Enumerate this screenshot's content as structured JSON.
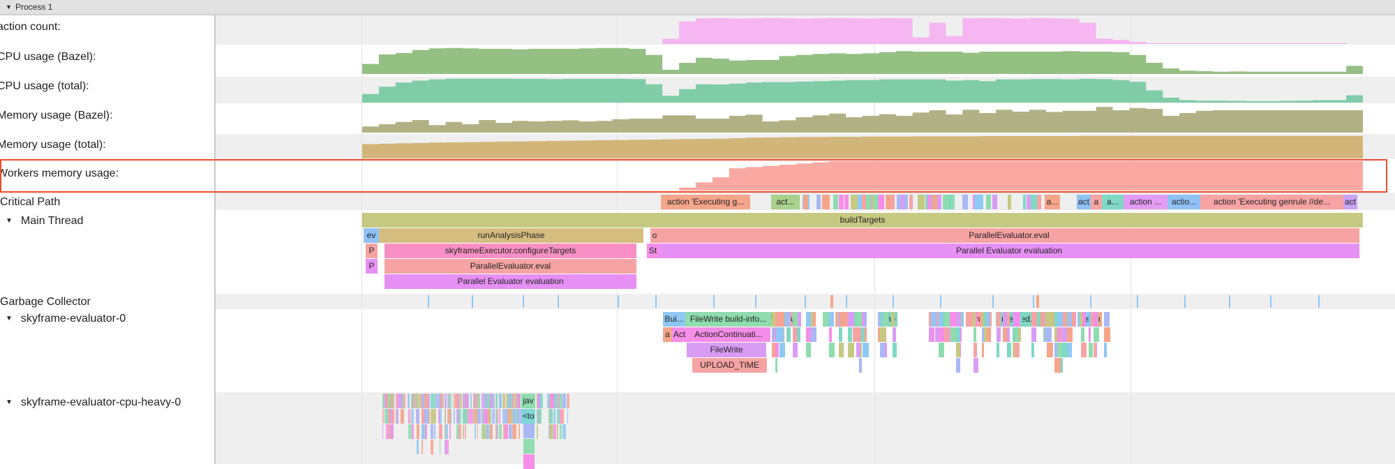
{
  "header": {
    "title": "Process 1",
    "expand_icon": "triangle-down"
  },
  "highlight_color": "#ee4b2b",
  "counters": [
    {
      "key": "action_count",
      "label": "action count:",
      "color": "#f5b6f2",
      "levels": [
        0,
        0,
        0,
        0,
        0,
        0,
        0,
        0,
        0,
        0,
        0,
        0,
        0,
        0,
        0,
        0,
        0,
        0,
        0.2,
        0.85,
        0.97,
        0.98,
        0.96,
        0.97,
        0.98,
        0.97,
        0.96,
        0.97,
        0.98,
        0.97,
        0.96,
        0.98,
        0.97,
        0.25,
        0.8,
        0.3,
        0.97,
        0.98,
        0.97,
        0.96,
        0.98,
        0.97,
        0.95,
        0.8,
        0.2,
        0.15,
        0.08,
        0.03,
        0.03,
        0.03,
        0.03,
        0.03,
        0.03,
        0.03,
        0.03,
        0.03,
        0.03,
        0.03,
        0.03,
        0
      ]
    },
    {
      "key": "cpu_bazel",
      "label": "CPU usage (Bazel):",
      "color": "#95c084",
      "levels": [
        0.36,
        0.7,
        0.75,
        0.86,
        0.92,
        0.93,
        0.92,
        0.9,
        0.9,
        0.88,
        0.9,
        0.9,
        0.9,
        0.92,
        0.93,
        0.93,
        0.9,
        0.68,
        0.15,
        0.4,
        0.58,
        0.55,
        0.48,
        0.5,
        0.5,
        0.64,
        0.68,
        0.72,
        0.74,
        0.72,
        0.74,
        0.78,
        0.82,
        0.8,
        0.8,
        0.8,
        0.76,
        0.8,
        0.8,
        0.8,
        0.8,
        0.8,
        0.82,
        0.8,
        0.8,
        0.78,
        0.68,
        0.4,
        0.2,
        0.12,
        0.1,
        0.08,
        0.09,
        0.08,
        0.08,
        0.08,
        0.08,
        0.08,
        0.08,
        0.29
      ]
    },
    {
      "key": "cpu_total",
      "label": "CPU usage (total):",
      "color": "#7fcca7",
      "levels": [
        0.35,
        0.65,
        0.82,
        0.9,
        0.95,
        0.98,
        0.98,
        0.98,
        0.98,
        0.97,
        0.97,
        0.96,
        0.97,
        0.97,
        0.97,
        0.97,
        0.96,
        0.75,
        0.28,
        0.55,
        0.75,
        0.74,
        0.78,
        0.82,
        0.84,
        0.84,
        0.86,
        0.88,
        0.9,
        0.92,
        0.92,
        0.95,
        0.95,
        0.95,
        0.95,
        0.9,
        0.92,
        0.88,
        0.95,
        0.95,
        0.96,
        0.96,
        0.95,
        0.97,
        0.96,
        0.92,
        0.85,
        0.5,
        0.2,
        0.1,
        0.08,
        0.08,
        0.07,
        0.06,
        0.06,
        0.07,
        0.08,
        0.1,
        0.1,
        0.3
      ]
    },
    {
      "key": "memory_bazel",
      "label": "Memory usage (Bazel):",
      "color": "#b1b185",
      "levels": [
        0.22,
        0.3,
        0.38,
        0.45,
        0.27,
        0.38,
        0.3,
        0.45,
        0.35,
        0.42,
        0.4,
        0.42,
        0.44,
        0.4,
        0.42,
        0.48,
        0.5,
        0.5,
        0.62,
        0.62,
        0.5,
        0.5,
        0.6,
        0.64,
        0.4,
        0.44,
        0.55,
        0.62,
        0.68,
        0.55,
        0.6,
        0.66,
        0.6,
        0.72,
        0.8,
        0.65,
        0.82,
        0.7,
        0.82,
        0.75,
        0.82,
        0.74,
        0.78,
        0.78,
        0.92,
        0.8,
        0.88,
        0.85,
        0.6,
        0.7,
        0.78,
        0.8,
        0.8,
        0.8,
        0.8,
        0.8,
        0.8,
        0.8,
        0.8,
        0.8
      ]
    },
    {
      "key": "memory_total",
      "label": "Memory usage (total):",
      "color": "#d2b679",
      "levels": [
        0.62,
        0.64,
        0.66,
        0.67,
        0.69,
        0.7,
        0.71,
        0.72,
        0.73,
        0.74,
        0.75,
        0.76,
        0.77,
        0.78,
        0.79,
        0.8,
        0.81,
        0.82,
        0.83,
        0.84,
        0.85,
        0.86,
        0.88,
        0.9,
        0.91,
        0.92,
        0.93,
        0.93,
        0.94,
        0.94,
        0.95,
        0.95,
        0.95,
        0.96,
        0.96,
        0.96,
        0.96,
        0.97,
        0.97,
        0.97,
        0.97,
        0.97,
        0.97,
        0.98,
        0.98,
        0.98,
        0.98,
        0.98,
        0.98,
        0.98,
        0.98,
        0.98,
        0.98,
        0.98,
        0.98,
        0.98,
        0.98,
        0.98,
        0.98,
        0.98
      ]
    },
    {
      "key": "workers_memory",
      "label": "Workers memory usage:",
      "color": "#f9a8a2",
      "levels": [
        0,
        0,
        0,
        0,
        0,
        0,
        0,
        0,
        0,
        0,
        0,
        0,
        0,
        0,
        0,
        0,
        0,
        0,
        0,
        0.1,
        0.28,
        0.45,
        0.76,
        0.8,
        0.84,
        0.88,
        0.92,
        0.96,
        1,
        1,
        1,
        1,
        1,
        1,
        1,
        1,
        1,
        1,
        1,
        1,
        1,
        1,
        1,
        1,
        1,
        1,
        1,
        1,
        1,
        1,
        1,
        1,
        1,
        1,
        1,
        1,
        1,
        1,
        1,
        1
      ]
    }
  ],
  "critical_path": {
    "label": "Critical Path",
    "slices": [
      {
        "label": "action 'Executing g...",
        "color": "#f5a58a"
      },
      {
        "label": "act...",
        "color": "#a9d18e"
      },
      {
        "label": "a",
        "color": "#d89cf5"
      },
      {
        "label": "a",
        "color": "#f58ee8"
      },
      {
        "label": "a...",
        "color": "#f5a58a"
      },
      {
        "label": "act",
        "color": "#8fc1f5"
      },
      {
        "label": "a",
        "color": "#f7a3a3"
      },
      {
        "label": "a...",
        "color": "#7fd8c4"
      },
      {
        "label": "action ...",
        "color": "#e39cf5"
      },
      {
        "label": "actio...",
        "color": "#8fc1f5"
      },
      {
        "label": "action 'Executing genrule //de...",
        "color": "#f7a3a3"
      },
      {
        "label": "act",
        "color": "#c9a3f5"
      }
    ]
  },
  "main_thread": {
    "label": "Main Thread",
    "slices": [
      {
        "label": "buildTargets",
        "color": "#c5c982"
      },
      {
        "label": "ev",
        "color": "#8fc1f5"
      },
      {
        "label": "runAnalysisPhase",
        "color": "#d4bd7f"
      },
      {
        "label": "o",
        "color": "#f7a3a3"
      },
      {
        "label": "ParallelEvaluator.eval",
        "color": "#f7a3a3"
      },
      {
        "label": "P",
        "color": "#f7a3a3"
      },
      {
        "label": "skyframeExecutor.configureTargets",
        "color": "#f88fc5"
      },
      {
        "label": "St",
        "color": "#f58ee8"
      },
      {
        "label": "Parallel Evaluator evaluation",
        "color": "#e690f5"
      },
      {
        "label": "P",
        "color": "#e690f5"
      },
      {
        "label": "ParallelEvaluator.eval",
        "color": "#f7a3a3"
      },
      {
        "label": "Parallel Evaluator evaluation",
        "color": "#e690f5"
      }
    ]
  },
  "garbage_collector": {
    "label": "Garbage Collector",
    "tick_color": "#8fc8f5"
  },
  "evaluator_0": {
    "label": "skyframe-evaluator-0",
    "slices": [
      {
        "label": "Bui...",
        "color": "#8fc8f5"
      },
      {
        "label": "FileWrite build-info...",
        "color": "#8fdcae"
      },
      {
        "label": "W",
        "color": "#a9d18e"
      },
      {
        "label": "W",
        "color": "#f58ee8"
      },
      {
        "label": "Bumer",
        "color": "#f7a3a3"
      },
      {
        "label": "m",
        "color": "#f7a3a3"
      },
      {
        "label": "me",
        "color": "#7fd8c4"
      },
      {
        "label": "me",
        "color": "#f7a3a3"
      },
      {
        "label": "m",
        "color": "#f7a3a3"
      },
      {
        "label": "merged...",
        "color": "#7fd8c4"
      },
      {
        "label": "C",
        "color": "#d4bd7f"
      },
      {
        "label": "dis",
        "color": "#8fc8f5"
      },
      {
        "label": "m",
        "color": "#f5a58a"
      },
      {
        "label": "a",
        "color": "#f5a58a"
      },
      {
        "label": "Act",
        "color": "#f58ee8"
      },
      {
        "label": "ActionContinuati...",
        "color": "#f58ee8"
      },
      {
        "label": "FileWrite",
        "color": "#d99cf5"
      },
      {
        "label": "UPLOAD_TIME",
        "color": "#f7a3a3"
      }
    ]
  },
  "cpu_heavy_0": {
    "label": "skyframe-evaluator-cpu-heavy-0",
    "slices": [
      {
        "label": "jav",
        "color": "#8fdcae"
      },
      {
        "label": "<to",
        "color": "#7fd8d8"
      }
    ]
  },
  "thread_expand_icon": "triangle-down"
}
